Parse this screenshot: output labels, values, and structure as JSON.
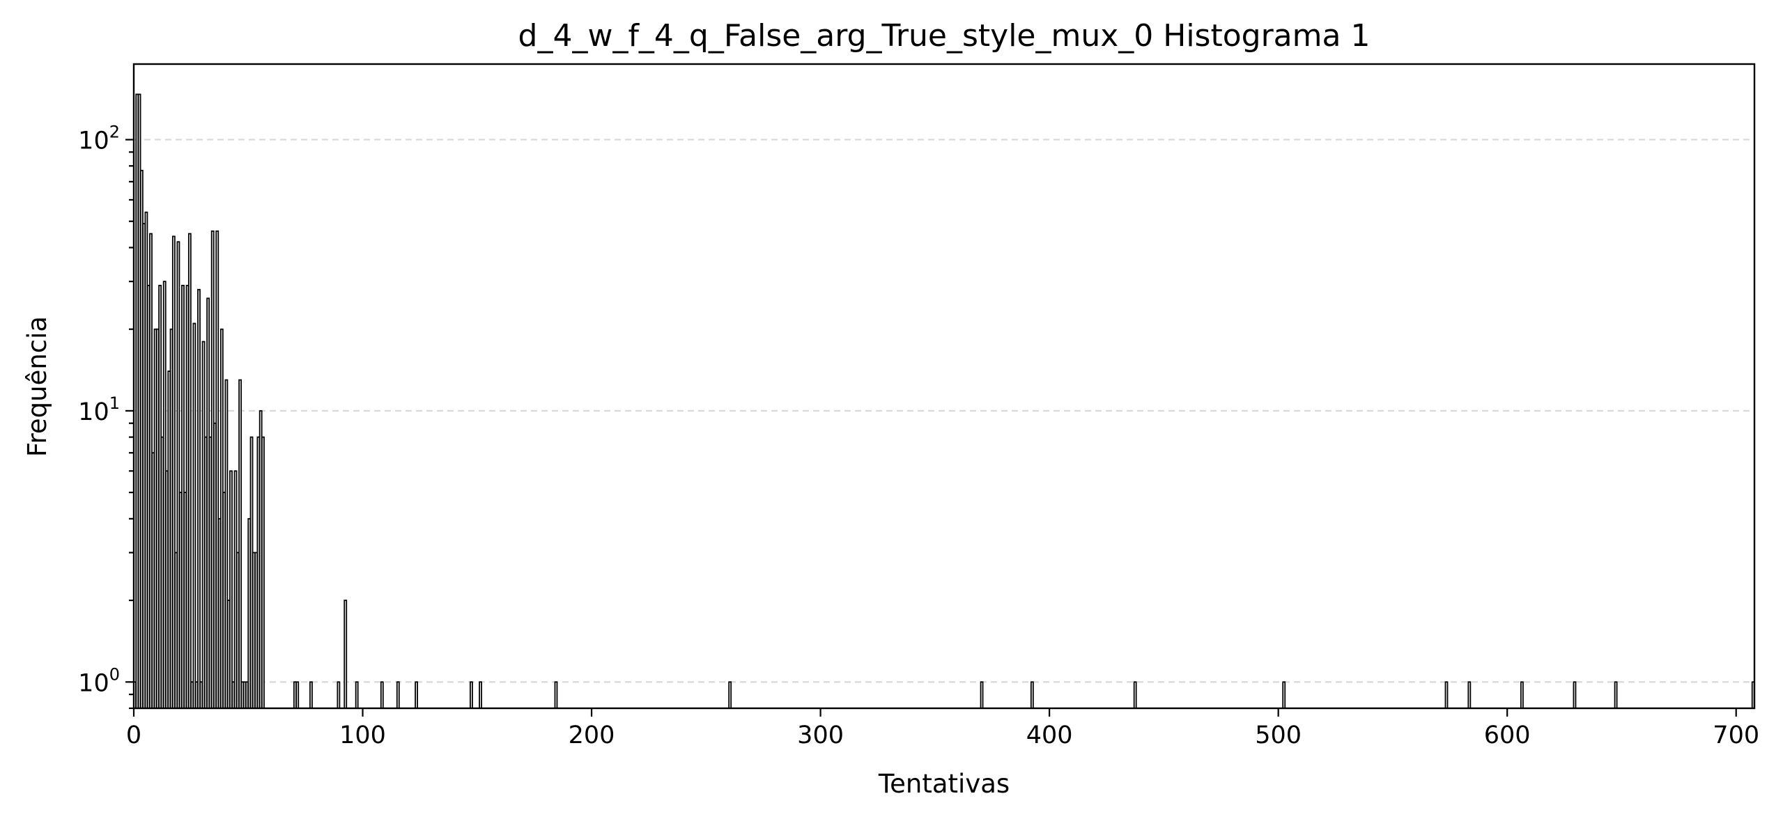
{
  "chart_data": {
    "type": "bar",
    "title": "d_4_w_f_4_q_False_arg_True_style_mux_0 Histograma 1",
    "xlabel": "Tentativas",
    "ylabel": "Frequência",
    "xlim": [
      0,
      708
    ],
    "ylim": [
      0.8,
      190
    ],
    "yscale": "log",
    "grid": "y-major-dashed",
    "legend": "none",
    "bar_edge_color": "#000000",
    "bar_face_color": "#ffffff",
    "grid_color": "#d9d9d9",
    "x_ticks": [
      {
        "value": 0,
        "label": "0"
      },
      {
        "value": 100,
        "label": "100"
      },
      {
        "value": 200,
        "label": "200"
      },
      {
        "value": 300,
        "label": "300"
      },
      {
        "value": 400,
        "label": "400"
      },
      {
        "value": 500,
        "label": "500"
      },
      {
        "value": 600,
        "label": "600"
      },
      {
        "value": 700,
        "label": "700"
      }
    ],
    "y_ticks": [
      {
        "value": 1,
        "base": "10",
        "exponent": "0"
      },
      {
        "value": 10,
        "base": "10",
        "exponent": "1"
      },
      {
        "value": 100,
        "base": "10",
        "exponent": "2"
      }
    ],
    "bins": [
      {
        "x": 0,
        "count": 1
      },
      {
        "x": 1,
        "count": 147
      },
      {
        "x": 2,
        "count": 147
      },
      {
        "x": 3,
        "count": 77
      },
      {
        "x": 4,
        "count": 49
      },
      {
        "x": 5,
        "count": 54
      },
      {
        "x": 6,
        "count": 29
      },
      {
        "x": 7,
        "count": 45
      },
      {
        "x": 8,
        "count": 7
      },
      {
        "x": 9,
        "count": 20
      },
      {
        "x": 10,
        "count": 20
      },
      {
        "x": 11,
        "count": 29
      },
      {
        "x": 12,
        "count": 8
      },
      {
        "x": 13,
        "count": 30
      },
      {
        "x": 14,
        "count": 6
      },
      {
        "x": 15,
        "count": 14
      },
      {
        "x": 16,
        "count": 20
      },
      {
        "x": 17,
        "count": 44
      },
      {
        "x": 18,
        "count": 3
      },
      {
        "x": 19,
        "count": 42
      },
      {
        "x": 20,
        "count": 5
      },
      {
        "x": 21,
        "count": 29
      },
      {
        "x": 22,
        "count": 5
      },
      {
        "x": 23,
        "count": 29
      },
      {
        "x": 24,
        "count": 45
      },
      {
        "x": 25,
        "count": 1
      },
      {
        "x": 26,
        "count": 21
      },
      {
        "x": 27,
        "count": 1
      },
      {
        "x": 28,
        "count": 28
      },
      {
        "x": 29,
        "count": 1
      },
      {
        "x": 30,
        "count": 18
      },
      {
        "x": 31,
        "count": 8
      },
      {
        "x": 32,
        "count": 26
      },
      {
        "x": 33,
        "count": 8
      },
      {
        "x": 34,
        "count": 46
      },
      {
        "x": 35,
        "count": 9
      },
      {
        "x": 36,
        "count": 46
      },
      {
        "x": 37,
        "count": 4
      },
      {
        "x": 38,
        "count": 20
      },
      {
        "x": 39,
        "count": 5
      },
      {
        "x": 40,
        "count": 13
      },
      {
        "x": 41,
        "count": 2
      },
      {
        "x": 42,
        "count": 6
      },
      {
        "x": 43,
        "count": 1
      },
      {
        "x": 44,
        "count": 6
      },
      {
        "x": 45,
        "count": 3
      },
      {
        "x": 46,
        "count": 13
      },
      {
        "x": 47,
        "count": 1
      },
      {
        "x": 48,
        "count": 1
      },
      {
        "x": 49,
        "count": 1
      },
      {
        "x": 50,
        "count": 4
      },
      {
        "x": 51,
        "count": 8
      },
      {
        "x": 52,
        "count": 3
      },
      {
        "x": 53,
        "count": 3
      },
      {
        "x": 54,
        "count": 8
      },
      {
        "x": 55,
        "count": 10
      },
      {
        "x": 56,
        "count": 8
      },
      {
        "x": 70,
        "count": 1
      },
      {
        "x": 71,
        "count": 1
      },
      {
        "x": 77,
        "count": 1
      },
      {
        "x": 89,
        "count": 1
      },
      {
        "x": 92,
        "count": 2
      },
      {
        "x": 97,
        "count": 1
      },
      {
        "x": 108,
        "count": 1
      },
      {
        "x": 115,
        "count": 1
      },
      {
        "x": 123,
        "count": 1
      },
      {
        "x": 147,
        "count": 1
      },
      {
        "x": 151,
        "count": 1
      },
      {
        "x": 184,
        "count": 1
      },
      {
        "x": 260,
        "count": 1
      },
      {
        "x": 370,
        "count": 1
      },
      {
        "x": 392,
        "count": 1
      },
      {
        "x": 437,
        "count": 1
      },
      {
        "x": 502,
        "count": 1
      },
      {
        "x": 573,
        "count": 1
      },
      {
        "x": 583,
        "count": 1
      },
      {
        "x": 606,
        "count": 1
      },
      {
        "x": 629,
        "count": 1
      },
      {
        "x": 647,
        "count": 1
      },
      {
        "x": 707,
        "count": 1
      }
    ]
  }
}
